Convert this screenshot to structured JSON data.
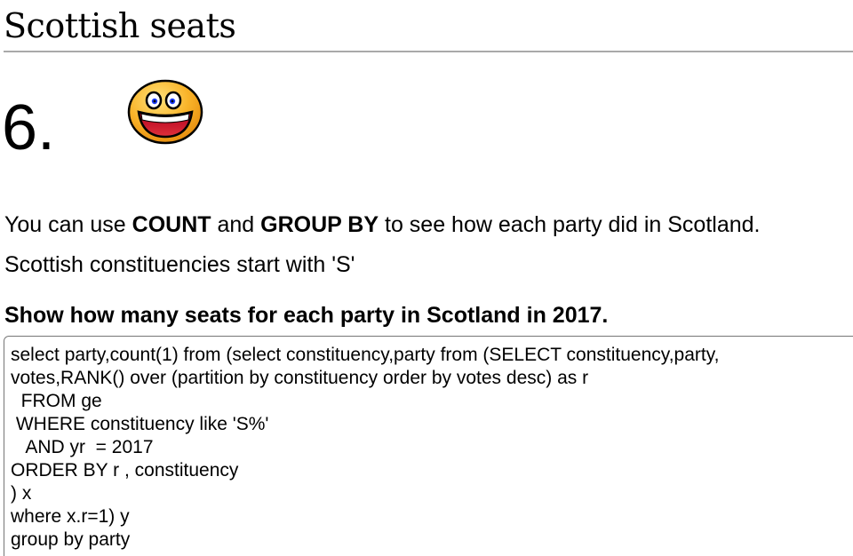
{
  "header": {
    "title": "Scottish seats"
  },
  "question": {
    "number": "6.",
    "icon": "smiley-face-icon",
    "intro": {
      "part1": "You can use ",
      "kw1": "COUNT",
      "part2": " and ",
      "kw2": "GROUP BY",
      "part3": " to see how each party did in Scotland."
    },
    "note": "Scottish constituencies start with 'S'",
    "task": "Show how many seats for each party in Scotland in 2017."
  },
  "editor": {
    "lines": [
      "select party,count(1) from (select constituency,party from (SELECT constituency,party,",
      "votes,RANK() over (partition by constituency order by votes desc) as r",
      "  FROM ge",
      " WHERE constituency like 'S%'",
      "   AND yr  = 2017",
      "ORDER BY r , constituency",
      ") x",
      "where x.r=1) y",
      "group by party"
    ]
  },
  "colors": {
    "smiley_face": "#f7a51c",
    "smiley_outline": "#000000",
    "rule": "#a9a9a9",
    "editor_border": "#767676"
  }
}
